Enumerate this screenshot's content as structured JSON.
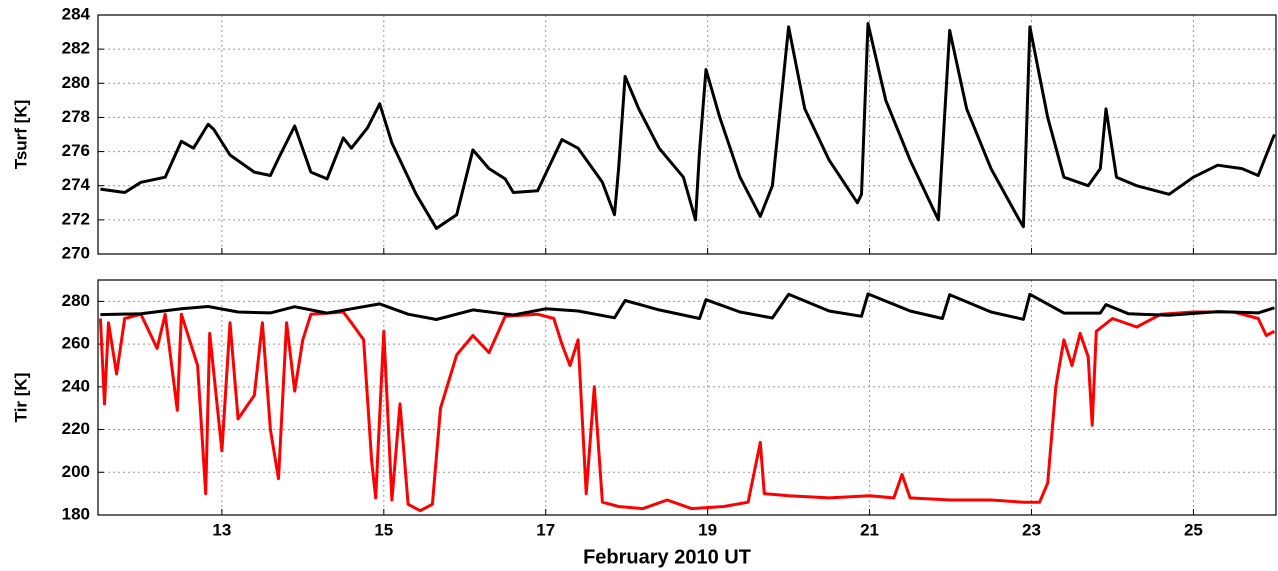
{
  "chart_data": [
    {
      "type": "line",
      "ylabel": "Tsurf [K]",
      "xlim": [
        11.47,
        26.02
      ],
      "xticks": [
        13,
        15,
        17,
        19,
        21,
        23,
        25
      ],
      "ylim": [
        270,
        284
      ],
      "yticks": [
        270,
        272,
        274,
        276,
        278,
        280,
        282,
        284
      ],
      "grid": true,
      "series": [
        {
          "color": "#000000",
          "x": [
            11.5,
            11.8,
            12.0,
            12.3,
            12.5,
            12.65,
            12.83,
            12.9,
            13.1,
            13.4,
            13.6,
            13.7,
            13.9,
            14.1,
            14.3,
            14.5,
            14.6,
            14.8,
            14.95,
            15.1,
            15.4,
            15.65,
            15.9,
            16.1,
            16.3,
            16.5,
            16.6,
            16.9,
            17.2,
            17.4,
            17.7,
            17.85,
            17.9,
            17.98,
            18.15,
            18.4,
            18.7,
            18.85,
            18.9,
            18.98,
            19.15,
            19.4,
            19.65,
            19.8,
            20.0,
            20.2,
            20.5,
            20.85,
            20.9,
            20.98,
            21.2,
            21.5,
            21.8,
            21.85,
            21.99,
            22.2,
            22.5,
            22.85,
            22.9,
            22.98,
            23.2,
            23.4,
            23.7,
            23.85,
            23.92,
            24.05,
            24.3,
            24.7,
            25.0,
            25.3,
            25.6,
            25.8,
            26.0
          ],
          "values": [
            273.8,
            273.6,
            274.2,
            274.5,
            276.6,
            276.2,
            277.6,
            277.3,
            275.8,
            274.8,
            274.6,
            275.6,
            277.5,
            274.8,
            274.4,
            276.8,
            276.2,
            277.4,
            278.8,
            276.5,
            273.5,
            271.5,
            272.3,
            276.1,
            275.0,
            274.4,
            273.6,
            273.7,
            276.7,
            276.2,
            274.2,
            272.3,
            275.0,
            280.4,
            278.5,
            276.2,
            274.5,
            272.0,
            276.0,
            280.8,
            278.0,
            274.5,
            272.2,
            274.0,
            283.3,
            278.5,
            275.5,
            273.0,
            273.5,
            283.5,
            279.0,
            275.5,
            272.5,
            272.0,
            283.1,
            278.5,
            275.0,
            272.0,
            271.6,
            283.3,
            278.0,
            274.5,
            274.0,
            275.0,
            278.5,
            274.5,
            274.0,
            273.5,
            274.5,
            275.2,
            275.0,
            274.6,
            277.0
          ]
        }
      ]
    },
    {
      "type": "line",
      "ylabel": "Tir [K]",
      "xlabel": "February 2010 UT",
      "xlim": [
        11.47,
        26.02
      ],
      "xticks": [
        13,
        15,
        17,
        19,
        21,
        23,
        25
      ],
      "ylim": [
        180,
        290
      ],
      "yticks": [
        180,
        200,
        220,
        240,
        260,
        280
      ],
      "grid": true,
      "series": [
        {
          "color": "#ff0000",
          "x": [
            11.5,
            11.55,
            11.6,
            11.7,
            11.8,
            12.0,
            12.2,
            12.3,
            12.45,
            12.5,
            12.7,
            12.8,
            12.85,
            13.0,
            13.1,
            13.2,
            13.4,
            13.5,
            13.6,
            13.7,
            13.8,
            13.9,
            14.0,
            14.1,
            14.5,
            14.6,
            14.75,
            14.85,
            14.9,
            15.0,
            15.1,
            15.2,
            15.3,
            15.45,
            15.6,
            15.7,
            15.9,
            16.1,
            16.3,
            16.5,
            16.9,
            17.1,
            17.2,
            17.3,
            17.4,
            17.5,
            17.6,
            17.7,
            17.9,
            18.2,
            18.5,
            18.8,
            19.2,
            19.5,
            19.65,
            19.7,
            20.0,
            20.5,
            21.0,
            21.3,
            21.4,
            21.5,
            22.0,
            22.5,
            22.9,
            23.1,
            23.2,
            23.3,
            23.4,
            23.5,
            23.6,
            23.7,
            23.75,
            23.8,
            24.0,
            24.3,
            24.6,
            25.0,
            25.5,
            25.8,
            25.9,
            26.0
          ],
          "values": [
            272,
            232,
            270,
            246,
            272,
            274,
            258,
            274,
            229,
            274,
            250,
            190,
            265,
            210,
            270,
            225,
            236,
            270,
            220,
            197,
            270,
            238,
            262,
            274,
            275,
            270,
            262,
            205,
            188,
            266,
            187,
            232,
            185,
            182,
            185,
            230,
            255,
            264,
            256,
            273,
            274,
            272,
            260,
            250,
            262,
            190,
            240,
            186,
            184,
            183,
            187,
            183,
            184,
            186,
            214,
            190,
            189,
            188,
            189,
            188,
            199,
            188,
            187,
            187,
            186,
            186,
            195,
            240,
            262,
            250,
            265,
            254,
            222,
            266,
            272,
            268,
            274,
            275,
            275,
            272,
            264,
            266
          ]
        },
        {
          "color": "#000000",
          "x": [
            11.5,
            12.0,
            12.5,
            12.83,
            13.2,
            13.6,
            13.9,
            14.3,
            14.6,
            14.95,
            15.3,
            15.65,
            16.1,
            16.6,
            17.0,
            17.4,
            17.85,
            17.98,
            18.4,
            18.9,
            18.98,
            19.4,
            19.8,
            20.0,
            20.5,
            20.9,
            20.98,
            21.5,
            21.9,
            21.99,
            22.5,
            22.9,
            22.98,
            23.4,
            23.85,
            23.92,
            24.2,
            24.7,
            25.3,
            25.8,
            26.0
          ],
          "values": [
            273.8,
            274.2,
            276.5,
            277.6,
            275.0,
            274.6,
            277.5,
            274.5,
            276.5,
            278.8,
            274.0,
            271.5,
            276.0,
            273.6,
            276.5,
            275.5,
            272.3,
            280.4,
            276.0,
            272.0,
            280.8,
            275.0,
            272.2,
            283.3,
            275.5,
            273.0,
            283.5,
            275.5,
            272.0,
            283.1,
            275.0,
            271.6,
            283.3,
            274.5,
            274.5,
            278.5,
            274.2,
            273.5,
            275.2,
            274.6,
            277.0
          ]
        }
      ]
    }
  ]
}
